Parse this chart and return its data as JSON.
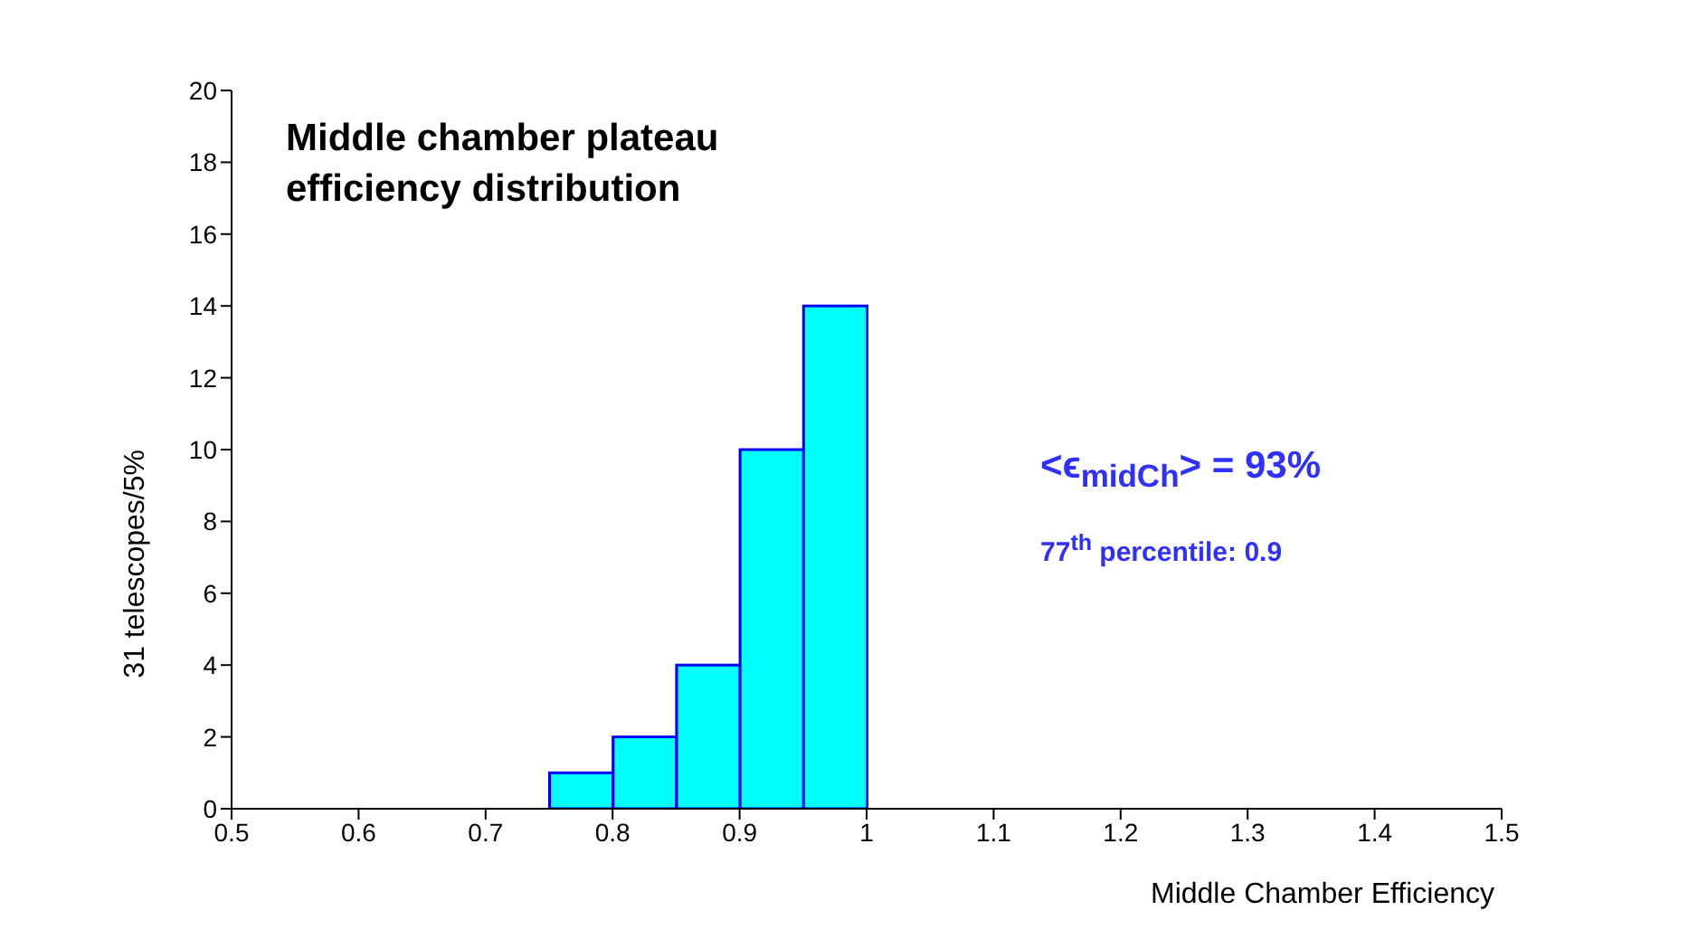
{
  "chart_data": {
    "type": "histogram",
    "title": "Middle chamber plateau efficiency distribution",
    "xlabel": "Middle Chamber Efficiency",
    "ylabel": "31 telescopes/5%",
    "bins": [
      0.5,
      0.55,
      0.6,
      0.65,
      0.7,
      0.75,
      0.8,
      0.85,
      0.9,
      0.95,
      1.0,
      1.05,
      1.1,
      1.15,
      1.2,
      1.25,
      1.3,
      1.35,
      1.4,
      1.45,
      1.5
    ],
    "values": [
      0,
      0,
      0,
      0,
      0,
      1,
      2,
      4,
      10,
      14,
      0,
      0,
      0,
      0,
      0,
      0,
      0,
      0,
      0,
      0
    ],
    "color": "#00ffff",
    "xlim": [
      0.5,
      1.5
    ],
    "xticks": [
      0.5,
      0.6,
      0.7,
      0.8,
      0.9,
      1,
      1.1,
      1.2,
      1.3,
      1.4,
      1.5
    ],
    "ylim": [
      0,
      20
    ],
    "yticks": [
      0,
      2,
      4,
      6,
      8,
      10,
      12,
      14,
      16,
      18,
      20
    ],
    "grid": false,
    "legend": false,
    "annotations": [
      "<ϵ$_{midCh}$> = 93%",
      "77$^{th}$ percentile: 0.9"
    ]
  }
}
